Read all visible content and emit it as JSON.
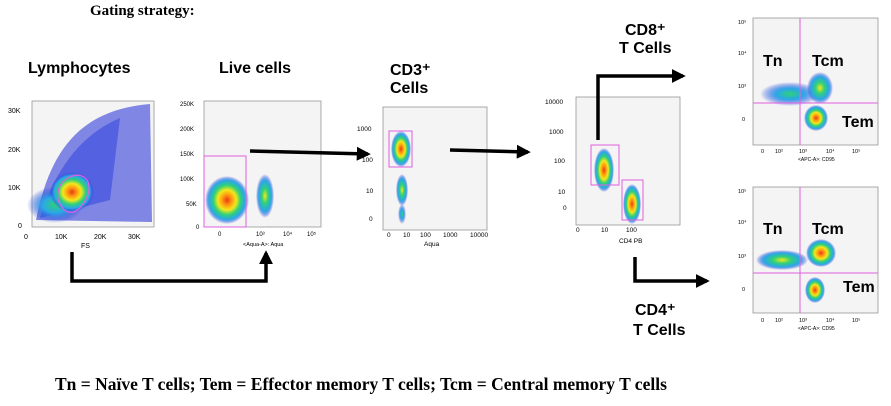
{
  "heading": "Gating strategy:",
  "footer": "Tn = Naïve T cells; Tem = Effector memory T cells; Tcm = Central memory T cells",
  "plot1": {
    "title": "Lymphocytes",
    "x_axis": "FS",
    "x_ticks": [
      "0",
      "10K",
      "20K",
      "30K"
    ],
    "y_ticks": [
      "30K",
      "20K",
      "10K",
      "0"
    ]
  },
  "plot2": {
    "title": "Live cells",
    "x_axis": "<Aqua-A>: Aqua",
    "x_ticks": [
      "0",
      "10³",
      "10⁴",
      "10⁵"
    ],
    "y_ticks": [
      "250K",
      "200K",
      "150K",
      "100K",
      "50K",
      "0"
    ]
  },
  "plot3": {
    "title_line1": "CD3⁺",
    "title_line2": "Cells",
    "x_axis": "Aqua",
    "x_ticks": [
      "0",
      "10",
      "100",
      "1000",
      "10000"
    ],
    "y_ticks": [
      "1000",
      "100",
      "10",
      "0"
    ]
  },
  "plot4": {
    "x_axis": "CD4 PB",
    "x_ticks": [
      "0",
      "10",
      "100"
    ],
    "y_ticks": [
      "10000",
      "1000",
      "100",
      "10",
      "0"
    ]
  },
  "cd8_label": {
    "line1": "CD8⁺",
    "line2": "T Cells"
  },
  "cd4_label": {
    "line1": "CD4⁺",
    "line2": "T Cells"
  },
  "plot5": {
    "x_axis": "<APC-A>: CD95",
    "x_ticks": [
      "0",
      "10²",
      "10³",
      "10⁴",
      "10⁵"
    ],
    "y_ticks": [
      "10⁵",
      "10⁴",
      "10³",
      "0"
    ],
    "gates": [
      "Tn",
      "Tcm",
      "Tem"
    ]
  },
  "plot6": {
    "x_axis": "<APC-A>: CD95",
    "x_ticks": [
      "0",
      "10²",
      "10³",
      "10⁴",
      "10⁵"
    ],
    "y_ticks": [
      "10⁵",
      "10⁴",
      "10³",
      "0"
    ],
    "gates": [
      "Tn",
      "Tcm",
      "Tem"
    ]
  },
  "colors": {
    "gate": "#e060e0",
    "arrow": "#000000",
    "density_low": "#1f2bd6",
    "density_mid": "#2fd07a",
    "density_high": "#e83a1a"
  }
}
